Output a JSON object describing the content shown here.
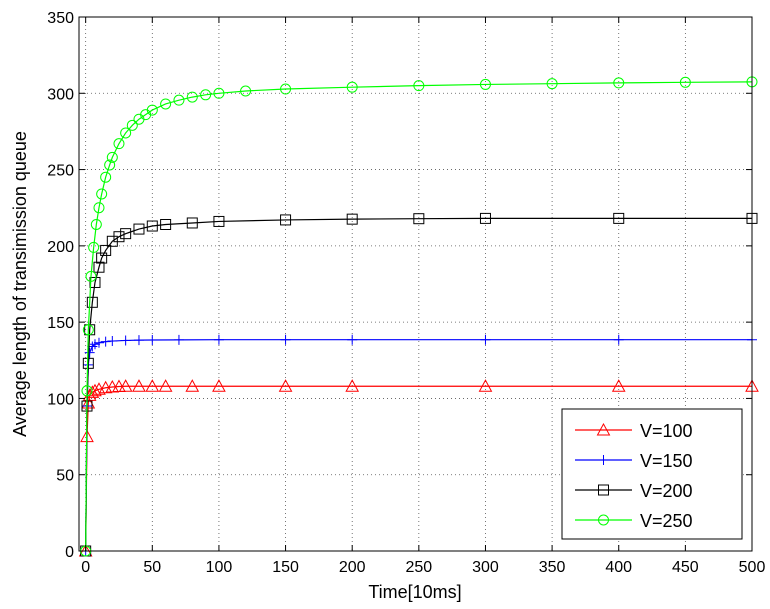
{
  "chart_data": {
    "type": "line",
    "title": "",
    "xlabel": "Time[10ms]",
    "ylabel": "Average length of transimission queue",
    "xlim": [
      -5,
      500
    ],
    "ylim": [
      0,
      350
    ],
    "xticks": [
      0,
      50,
      100,
      150,
      200,
      250,
      300,
      350,
      400,
      450,
      500
    ],
    "yticks": [
      0,
      50,
      100,
      150,
      200,
      250,
      300,
      350
    ],
    "grid": true,
    "legend_position": "bottom-right",
    "series": [
      {
        "name": "V=100",
        "color": "#ff0000",
        "marker": "triangle",
        "x": [
          0,
          1,
          2,
          3,
          5,
          7,
          10,
          15,
          20,
          25,
          30,
          40,
          50,
          60,
          80,
          100,
          150,
          200,
          300,
          400,
          500
        ],
        "y": [
          0,
          75,
          97,
          102,
          104,
          105,
          106,
          107,
          107.5,
          107.8,
          108,
          108,
          108,
          108,
          108,
          108,
          108,
          108,
          108,
          108,
          108
        ]
      },
      {
        "name": "V=150",
        "color": "#0000ff",
        "marker": "plus",
        "x": [
          0,
          1,
          2,
          3,
          5,
          7,
          10,
          15,
          20,
          30,
          40,
          50,
          70,
          100,
          150,
          200,
          300,
          400,
          500
        ],
        "y": [
          0,
          95,
          122,
          130,
          134,
          135.5,
          136.5,
          137.2,
          137.6,
          138,
          138.2,
          138.3,
          138.4,
          138.5,
          138.5,
          138.5,
          138.5,
          138.5,
          138.5
        ]
      },
      {
        "name": "V=200",
        "color": "#000000",
        "marker": "square",
        "x": [
          0,
          1,
          2,
          3,
          5,
          7,
          10,
          12,
          15,
          20,
          25,
          30,
          40,
          50,
          60,
          80,
          100,
          150,
          200,
          250,
          300,
          400,
          500
        ],
        "y": [
          0,
          95,
          123,
          145,
          163,
          176,
          186,
          192,
          197,
          203,
          206,
          208,
          211,
          213,
          214,
          215,
          216,
          217,
          217.5,
          217.8,
          218,
          218,
          218
        ]
      },
      {
        "name": "V=250",
        "color": "#00ff00",
        "marker": "circle",
        "x": [
          0,
          1,
          2,
          4,
          6,
          8,
          10,
          12,
          15,
          18,
          20,
          25,
          30,
          35,
          40,
          45,
          50,
          60,
          70,
          80,
          90,
          100,
          120,
          150,
          200,
          250,
          300,
          350,
          400,
          450,
          500
        ],
        "y": [
          0,
          105,
          145,
          180,
          199,
          214,
          225,
          234,
          245,
          253,
          258,
          267,
          274,
          279,
          283,
          286,
          289,
          293,
          295.5,
          297.5,
          299,
          300,
          301.5,
          302.8,
          304,
          305,
          305.8,
          306.3,
          306.8,
          307.2,
          307.5
        ]
      }
    ]
  }
}
